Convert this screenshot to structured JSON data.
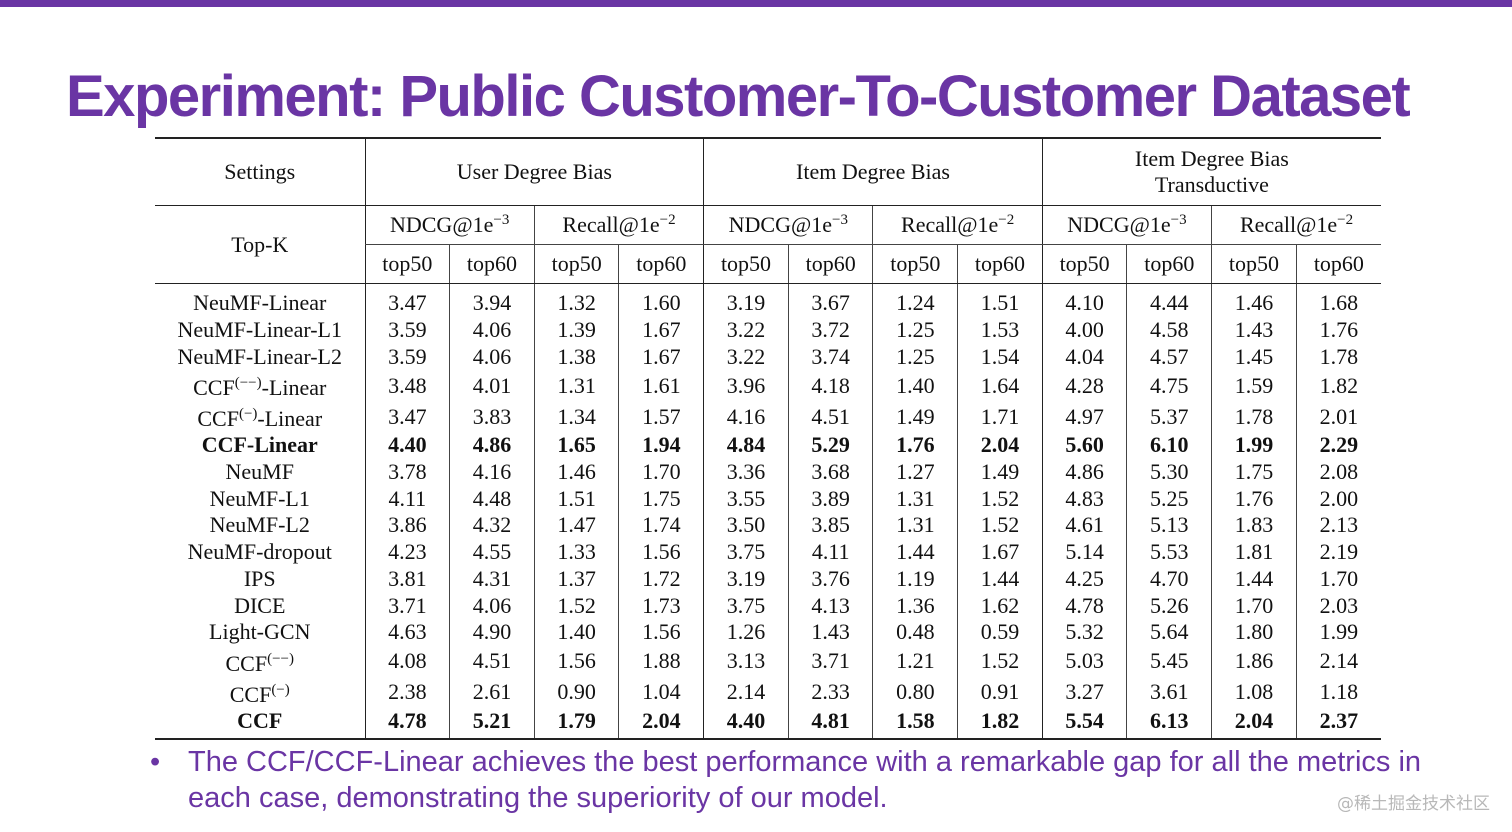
{
  "title": "Experiment: Public Customer-To-Customer Dataset",
  "table": {
    "settings_label": "Settings",
    "topk_label": "Top-K",
    "groups": [
      {
        "label": "User Degree Bias",
        "sublabel": ""
      },
      {
        "label": "Item Degree Bias",
        "sublabel": ""
      },
      {
        "label": "Item Degree Bias",
        "sublabel": "Transductive"
      }
    ],
    "metric_labels": [
      "NDCG@1e",
      "Recall@1e"
    ],
    "metric_exponents": [
      "−3",
      "−2"
    ],
    "k_labels": [
      "top50",
      "top60"
    ],
    "rows": [
      {
        "name": "NeuMF-Linear",
        "values": [
          "3.47",
          "3.94",
          "1.32",
          "1.60",
          "3.19",
          "3.67",
          "1.24",
          "1.51",
          "4.10",
          "4.44",
          "1.46",
          "1.68"
        ]
      },
      {
        "name": "NeuMF-Linear-L1",
        "values": [
          "3.59",
          "4.06",
          "1.39",
          "1.67",
          "3.22",
          "3.72",
          "1.25",
          "1.53",
          "4.00",
          "4.58",
          "1.43",
          "1.76"
        ]
      },
      {
        "name": "NeuMF-Linear-L2",
        "values": [
          "3.59",
          "4.06",
          "1.38",
          "1.67",
          "3.22",
          "3.74",
          "1.25",
          "1.54",
          "4.04",
          "4.57",
          "1.45",
          "1.78"
        ]
      },
      {
        "name": "CCF",
        "sup": "(−−)",
        "suffix": "-Linear",
        "values": [
          "3.48",
          "4.01",
          "1.31",
          "1.61",
          "3.96",
          "4.18",
          "1.40",
          "1.64",
          "4.28",
          "4.75",
          "1.59",
          "1.82"
        ]
      },
      {
        "name": "CCF",
        "sup": "(−)",
        "suffix": "-Linear",
        "values": [
          "3.47",
          "3.83",
          "1.34",
          "1.57",
          "4.16",
          "4.51",
          "1.49",
          "1.71",
          "4.97",
          "5.37",
          "1.78",
          "2.01"
        ]
      },
      {
        "name": "CCF-Linear",
        "bold": true,
        "values": [
          "4.40",
          "4.86",
          "1.65",
          "1.94",
          "4.84",
          "5.29",
          "1.76",
          "2.04",
          "5.60",
          "6.10",
          "1.99",
          "2.29"
        ]
      },
      {
        "name": "NeuMF",
        "values": [
          "3.78",
          "4.16",
          "1.46",
          "1.70",
          "3.36",
          "3.68",
          "1.27",
          "1.49",
          "4.86",
          "5.30",
          "1.75",
          "2.08"
        ]
      },
      {
        "name": "NeuMF-L1",
        "values": [
          "4.11",
          "4.48",
          "1.51",
          "1.75",
          "3.55",
          "3.89",
          "1.31",
          "1.52",
          "4.83",
          "5.25",
          "1.76",
          "2.00"
        ]
      },
      {
        "name": "NeuMF-L2",
        "values": [
          "3.86",
          "4.32",
          "1.47",
          "1.74",
          "3.50",
          "3.85",
          "1.31",
          "1.52",
          "4.61",
          "5.13",
          "1.83",
          "2.13"
        ]
      },
      {
        "name": "NeuMF-dropout",
        "values": [
          "4.23",
          "4.55",
          "1.33",
          "1.56",
          "3.75",
          "4.11",
          "1.44",
          "1.67",
          "5.14",
          "5.53",
          "1.81",
          "2.19"
        ]
      },
      {
        "name": "IPS",
        "values": [
          "3.81",
          "4.31",
          "1.37",
          "1.72",
          "3.19",
          "3.76",
          "1.19",
          "1.44",
          "4.25",
          "4.70",
          "1.44",
          "1.70"
        ]
      },
      {
        "name": "DICE",
        "values": [
          "3.71",
          "4.06",
          "1.52",
          "1.73",
          "3.75",
          "4.13",
          "1.36",
          "1.62",
          "4.78",
          "5.26",
          "1.70",
          "2.03"
        ]
      },
      {
        "name": "Light-GCN",
        "values": [
          "4.63",
          "4.90",
          "1.40",
          "1.56",
          "1.26",
          "1.43",
          "0.48",
          "0.59",
          "5.32",
          "5.64",
          "1.80",
          "1.99"
        ]
      },
      {
        "name": "CCF",
        "sup": "(−−)",
        "suffix": "",
        "values": [
          "4.08",
          "4.51",
          "1.56",
          "1.88",
          "3.13",
          "3.71",
          "1.21",
          "1.52",
          "5.03",
          "5.45",
          "1.86",
          "2.14"
        ]
      },
      {
        "name": "CCF",
        "sup": "(−)",
        "suffix": "",
        "values": [
          "2.38",
          "2.61",
          "0.90",
          "1.04",
          "2.14",
          "2.33",
          "0.80",
          "0.91",
          "3.27",
          "3.61",
          "1.08",
          "1.18"
        ]
      },
      {
        "name": "CCF",
        "bold": true,
        "values": [
          "4.78",
          "5.21",
          "1.79",
          "2.04",
          "4.40",
          "4.81",
          "1.58",
          "1.82",
          "5.54",
          "6.13",
          "2.04",
          "2.37"
        ]
      }
    ]
  },
  "bullet": {
    "marker": "•",
    "text": "The CCF/CCF-Linear achieves the best performance with a remarkable gap for all the metrics in each case, demonstrating the superiority of our model."
  },
  "watermark": "@稀土掘金技术社区",
  "colors": {
    "accent": "#6a35a4",
    "rule": "#222222",
    "text": "#111111"
  }
}
